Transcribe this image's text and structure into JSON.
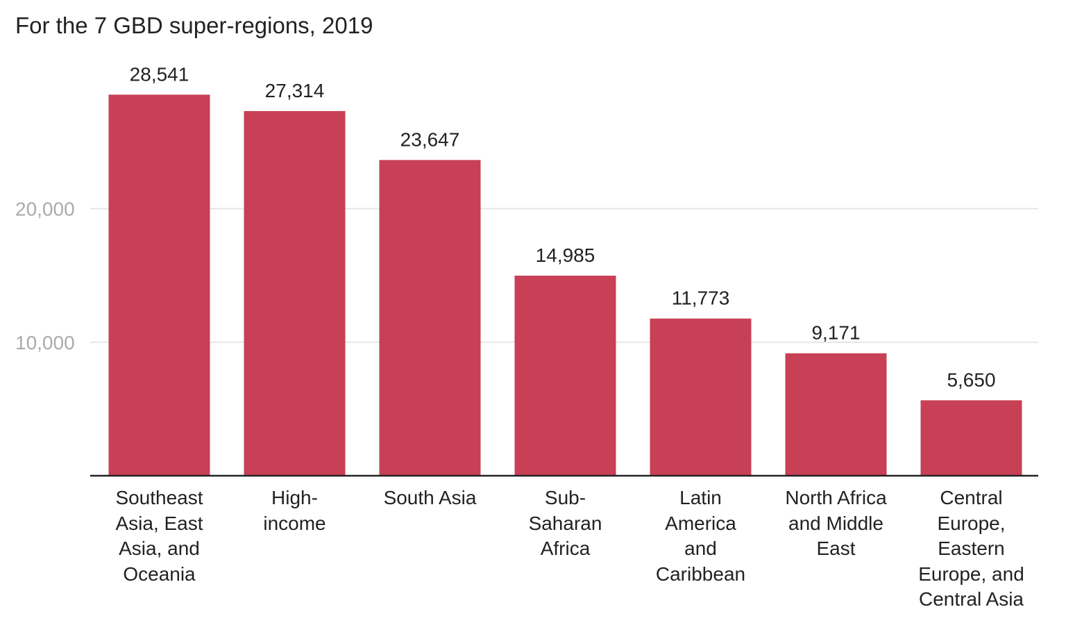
{
  "chart_data": {
    "type": "bar",
    "title": "For the 7 GBD super-regions, 2019",
    "xlabel": "",
    "ylabel": "",
    "ylim": [
      0,
      30000
    ],
    "yticks": [
      {
        "value": 10000,
        "label": "10,000"
      },
      {
        "value": 20000,
        "label": "20,000"
      }
    ],
    "grid": true,
    "legend": "none",
    "categories": [
      "Southeast Asia, East Asia, and Oceania",
      "High-income",
      "South Asia",
      "Sub-Saharan Africa",
      "Latin America and Caribbean",
      "North Africa and Middle East",
      "Central Europe, Eastern Europe, and Central Asia"
    ],
    "category_label_lines": [
      [
        "Southeast",
        "Asia, East",
        "Asia, and",
        "Oceania"
      ],
      [
        "High-",
        "income"
      ],
      [
        "South Asia"
      ],
      [
        "Sub-",
        "Saharan",
        "Africa"
      ],
      [
        "Latin",
        "America",
        "and",
        "Caribbean"
      ],
      [
        "North Africa",
        "and Middle",
        "East"
      ],
      [
        "Central",
        "Europe,",
        "Eastern",
        "Europe, and",
        "Central Asia"
      ]
    ],
    "values": [
      28541,
      27314,
      23647,
      14985,
      11773,
      9171,
      5650
    ],
    "value_labels": [
      "28,541",
      "27,314",
      "23,647",
      "14,985",
      "11,773",
      "9,171",
      "5,650"
    ],
    "bar_color": "#c84055",
    "grid_color": "#e6e6e6",
    "axis_color": "#222222",
    "tick_label_color": "#aaaaaa",
    "text_color": "#222222"
  }
}
